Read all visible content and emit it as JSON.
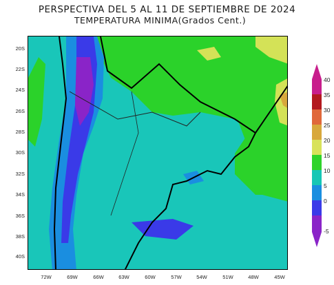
{
  "title": {
    "line1": "PERSPECTIVA DEL 5 AL 11 DE SEPTIEMBRE DE 2024",
    "line2": "TEMPERATURA MINIMA(Grados Cent.)"
  },
  "lat_labels": [
    "20S",
    "22S",
    "24S",
    "26S",
    "28S",
    "30S",
    "32S",
    "34S",
    "36S",
    "38S",
    "40S"
  ],
  "lon_labels": [
    "72W",
    "69W",
    "66W",
    "63W",
    "60W",
    "57W",
    "54W",
    "51W",
    "48W",
    "45W"
  ],
  "colorbar": {
    "ticks": [
      "40",
      "35",
      "30",
      "25",
      "20",
      "15",
      "10",
      "5",
      "0",
      "-5"
    ],
    "colors": [
      "#c81e8c",
      "#c81e8c",
      "#b3191f",
      "#e0683a",
      "#d8a83c",
      "#d8e25a",
      "#2fd32a",
      "#16c7b5",
      "#1a8ee0",
      "#3a3ae8",
      "#8a24c8"
    ]
  }
}
